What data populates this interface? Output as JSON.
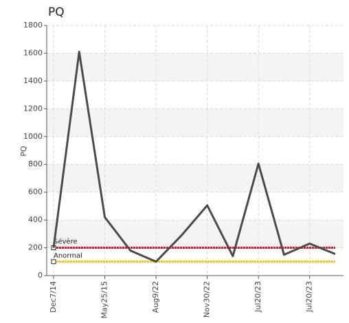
{
  "chart_data": {
    "type": "line",
    "title": "PQ",
    "y_label": "PQ",
    "categories": [
      "Dec7/14",
      null,
      "May25/15",
      null,
      "Aug9/22",
      null,
      "Nov30/22",
      null,
      "Jul20/23",
      null,
      "Jul20/23",
      null
    ],
    "series": [
      {
        "name": "PQ",
        "color": "#4a4a4a",
        "values": [
          200,
          1610,
          420,
          180,
          100,
          290,
          505,
          140,
          805,
          150,
          230,
          155
        ]
      }
    ],
    "thresholds": [
      {
        "name": "Sévère",
        "value": 200,
        "color": "#e8121a"
      },
      {
        "name": "Anormal",
        "value": 100,
        "color": "#f5c400"
      }
    ],
    "ylim": [
      0,
      1800
    ],
    "yticks": [
      0,
      200,
      400,
      600,
      800,
      1000,
      1200,
      1400,
      1600,
      1800
    ],
    "grid": true
  }
}
